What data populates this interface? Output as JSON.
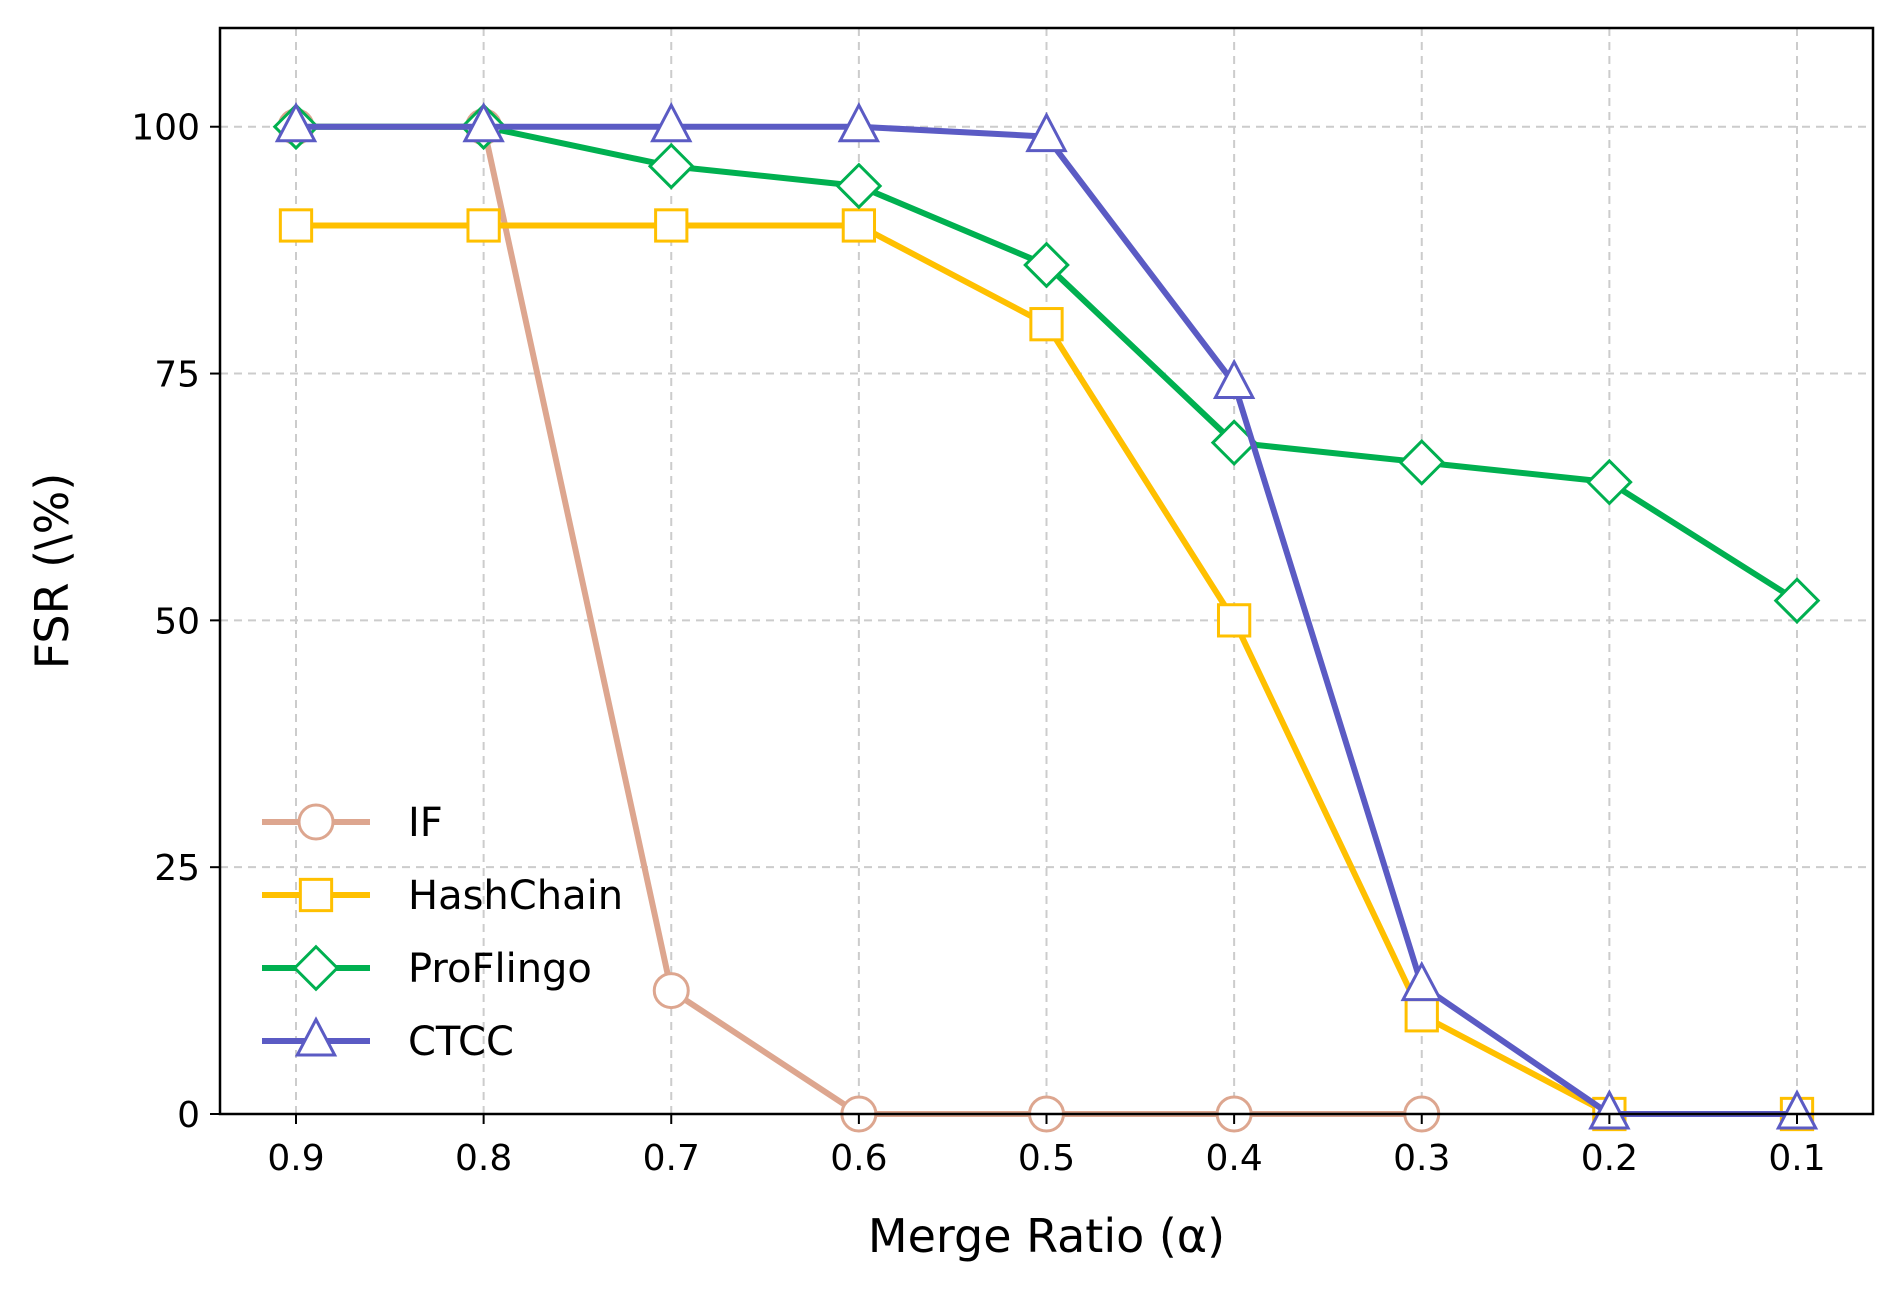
{
  "chart_data": {
    "type": "line",
    "xlabel": "Merge Ratio (α)",
    "ylabel": "FSR (\\%)",
    "x": [
      0.9,
      0.8,
      0.7,
      0.6,
      0.5,
      0.4,
      0.3,
      0.2,
      0.1
    ],
    "x_tick_labels": [
      "0.9",
      "0.8",
      "0.7",
      "0.6",
      "0.5",
      "0.4",
      "0.3",
      "0.2",
      "0.1"
    ],
    "y_ticks": [
      0,
      25,
      50,
      75,
      100
    ],
    "y_tick_labels": [
      "0",
      "25",
      "50",
      "75",
      "100"
    ],
    "ylim": [
      0,
      110
    ],
    "x_axis_reversed": true,
    "grid": true,
    "legend_position": "lower-left",
    "series": [
      {
        "name": "IF",
        "color": "#DDA68F",
        "marker": "circle",
        "x": [
          0.9,
          0.8,
          0.7,
          0.6,
          0.5,
          0.4,
          0.3
        ],
        "values": [
          100,
          100,
          12.5,
          0,
          0,
          0,
          0
        ]
      },
      {
        "name": "HashChain",
        "color": "#FFC000",
        "marker": "square",
        "x": [
          0.9,
          0.8,
          0.7,
          0.6,
          0.5,
          0.4,
          0.3,
          0.2,
          0.1
        ],
        "values": [
          90,
          90,
          90,
          90,
          80,
          50,
          10,
          0,
          0
        ]
      },
      {
        "name": "ProFlingo",
        "color": "#00B050",
        "marker": "diamond",
        "x": [
          0.9,
          0.8,
          0.7,
          0.6,
          0.5,
          0.4,
          0.3,
          0.2,
          0.1
        ],
        "values": [
          100,
          100,
          96,
          94,
          86,
          68,
          66,
          64,
          52
        ]
      },
      {
        "name": "CTCC",
        "color": "#5B5BC4",
        "marker": "triangle",
        "x": [
          0.9,
          0.8,
          0.7,
          0.6,
          0.5,
          0.4,
          0.3,
          0.2,
          0.1
        ],
        "values": [
          100,
          100,
          100,
          100,
          99,
          74,
          13,
          0,
          0
        ]
      }
    ]
  }
}
